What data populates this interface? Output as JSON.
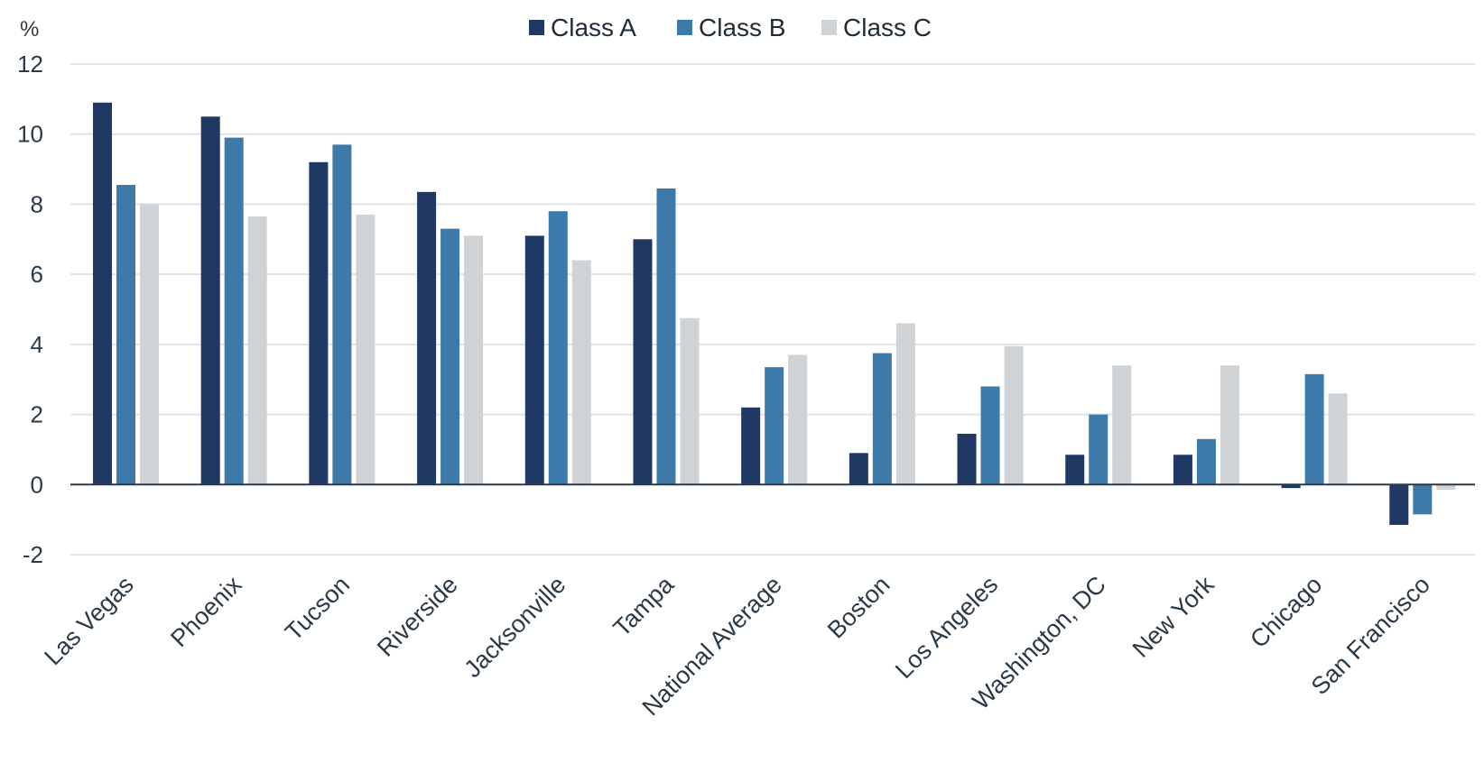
{
  "chart_data": {
    "type": "bar",
    "y_unit": "%",
    "ylim": [
      -2,
      12
    ],
    "yticks": [
      12,
      10,
      8,
      6,
      4,
      2,
      0,
      -2
    ],
    "grid": true,
    "legend_position": "top-center",
    "categories": [
      "Las Vegas",
      "Phoenix",
      "Tucson",
      "Riverside",
      "Jacksonville",
      "Tampa",
      "National Average",
      "Boston",
      "Los Angeles",
      "Washington, DC",
      "New York",
      "Chicago",
      "San Francisco"
    ],
    "highlight_category": "National Average",
    "highlight_color": "#d2643c",
    "series": [
      {
        "name": "Class A",
        "color": "#1f3864",
        "values": [
          10.9,
          10.5,
          9.2,
          8.35,
          7.1,
          7.0,
          2.2,
          0.9,
          1.45,
          0.85,
          0.85,
          -0.1,
          -1.15
        ]
      },
      {
        "name": "Class B",
        "color": "#3d7aaa",
        "values": [
          8.55,
          9.9,
          9.7,
          7.3,
          7.8,
          8.45,
          3.35,
          3.75,
          2.8,
          2.0,
          1.3,
          3.15,
          -0.85
        ]
      },
      {
        "name": "Class C",
        "color": "#cfd3d6",
        "values": [
          8.0,
          7.65,
          7.7,
          7.1,
          6.4,
          4.75,
          3.7,
          4.6,
          3.95,
          3.4,
          3.4,
          2.6,
          -0.15
        ]
      }
    ]
  }
}
